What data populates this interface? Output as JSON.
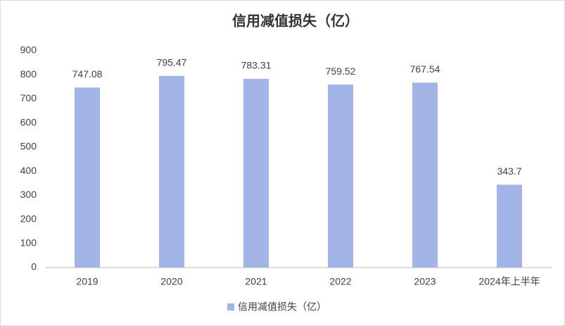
{
  "chart_data": {
    "type": "bar",
    "title": "信用减值损失（亿）",
    "categories": [
      "2019",
      "2020",
      "2021",
      "2022",
      "2023",
      "2024年上半年"
    ],
    "series": [
      {
        "name": "信用减值损失（亿）",
        "color": "#a3b5e6",
        "values": [
          747.08,
          795.47,
          783.31,
          759.52,
          767.54,
          343.7
        ]
      }
    ],
    "ylim": [
      0,
      900
    ],
    "yticks": [
      0,
      100,
      200,
      300,
      400,
      500,
      600,
      700,
      800,
      900
    ],
    "grid": false,
    "legend": "bottom"
  }
}
